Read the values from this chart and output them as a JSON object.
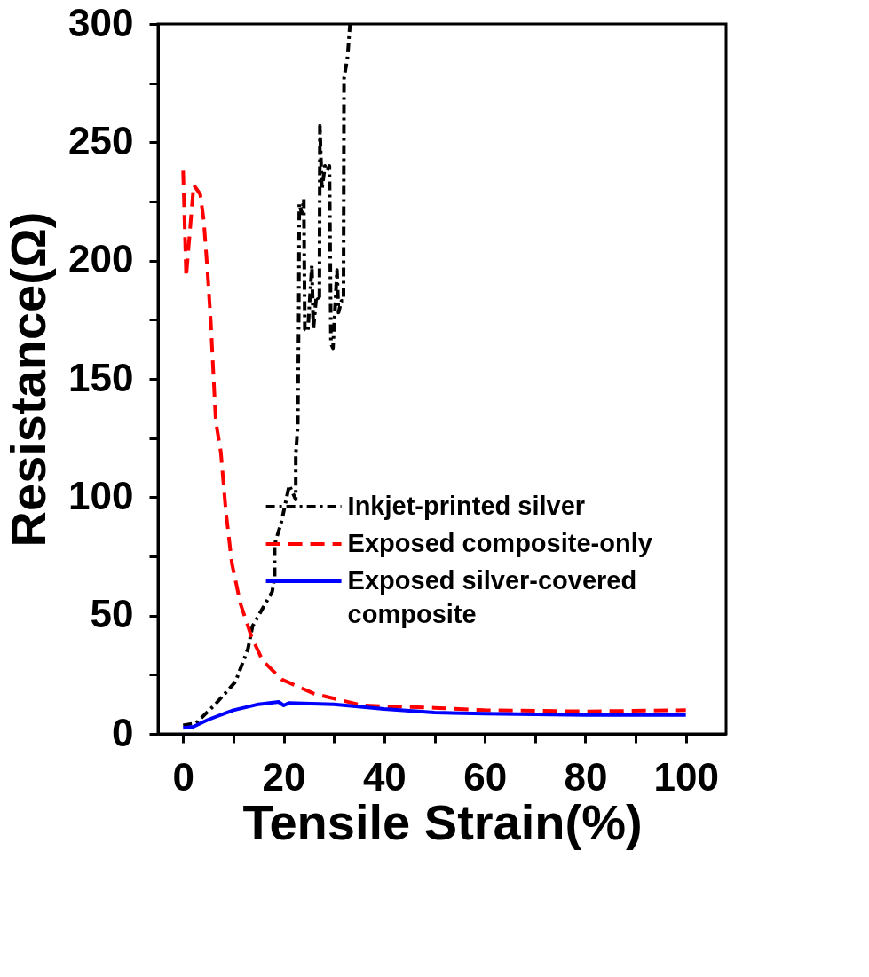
{
  "chart_data": {
    "type": "line",
    "xlabel": "Tensile Strain(%)",
    "ylabel": "Resistance(Ω)",
    "xlim": [
      -5,
      108
    ],
    "ylim": [
      0,
      300
    ],
    "xticks": [
      0,
      {
        "value": 10,
        "label": null
      },
      20,
      {
        "value": 30,
        "label": null
      },
      40,
      {
        "value": 50,
        "label": null
      },
      60,
      {
        "value": 70,
        "label": null
      },
      80,
      {
        "value": 90,
        "label": null
      },
      100
    ],
    "yticks": [
      0,
      {
        "value": 25,
        "label": null
      },
      50,
      {
        "value": 75,
        "label": null
      },
      100,
      {
        "value": 125,
        "label": null
      },
      150,
      {
        "value": 175,
        "label": null
      },
      200,
      {
        "value": 225,
        "label": null
      },
      250,
      {
        "value": 275,
        "label": null
      },
      300
    ],
    "grid": false,
    "legend": "bottom right",
    "series": [
      {
        "name": "Inkjet-printed silver",
        "color": "#000000",
        "line_style": "dashdot",
        "x": [
          0,
          2.6,
          6.4,
          10.4,
          12.9,
          13.8,
          15.8,
          17.7,
          18.2,
          18.2,
          19.6,
          21.1,
          22.4,
          22.4,
          22.8,
          23.0,
          23.1,
          23.6,
          24.0,
          24.2,
          24.8,
          25.6,
          25.9,
          26.5,
          27.1,
          27.2,
          27.6,
          28.2,
          28.6,
          29.1,
          29.4,
          29.8,
          30.6,
          30.9,
          31.5,
          31.9,
          32.0,
          32.7,
          33.2
        ],
        "values": [
          3.6,
          4.6,
          12.5,
          22,
          36,
          45.5,
          53,
          60,
          66,
          80,
          90,
          105,
          99,
          118,
          130,
          180,
          224,
          220,
          226,
          171,
          170,
          198,
          171,
          185,
          183,
          257,
          230,
          240,
          238,
          240,
          165,
          163,
          196,
          178,
          183,
          183,
          277,
          286,
          300
        ]
      },
      {
        "name": "Exposed composite-only",
        "color": "#ff0000",
        "line_style": "dashed",
        "x": [
          0,
          0.6,
          2.1,
          3.4,
          4.1,
          4.8,
          5.5,
          6.5,
          7.5,
          8.5,
          9.7,
          11.4,
          13.6,
          15.8,
          19.6,
          26,
          35.7,
          50,
          60,
          80,
          100
        ],
        "values": [
          238,
          193,
          232,
          228,
          217,
          197,
          174,
          132,
          119,
          94,
          72,
          55,
          41,
          31,
          23,
          17,
          12,
          11,
          10,
          9.5,
          10
        ]
      },
      {
        "name": "Exposed silver-covered composite",
        "color": "#0000ff",
        "line_style": "solid",
        "x": [
          0,
          2,
          5,
          10,
          15,
          19,
          20,
          21,
          30,
          40,
          50,
          60,
          80,
          100
        ],
        "values": [
          2.5,
          3,
          6,
          10,
          12.5,
          13.5,
          12,
          13,
          12.5,
          10.5,
          9,
          8.5,
          8,
          8
        ]
      }
    ]
  }
}
